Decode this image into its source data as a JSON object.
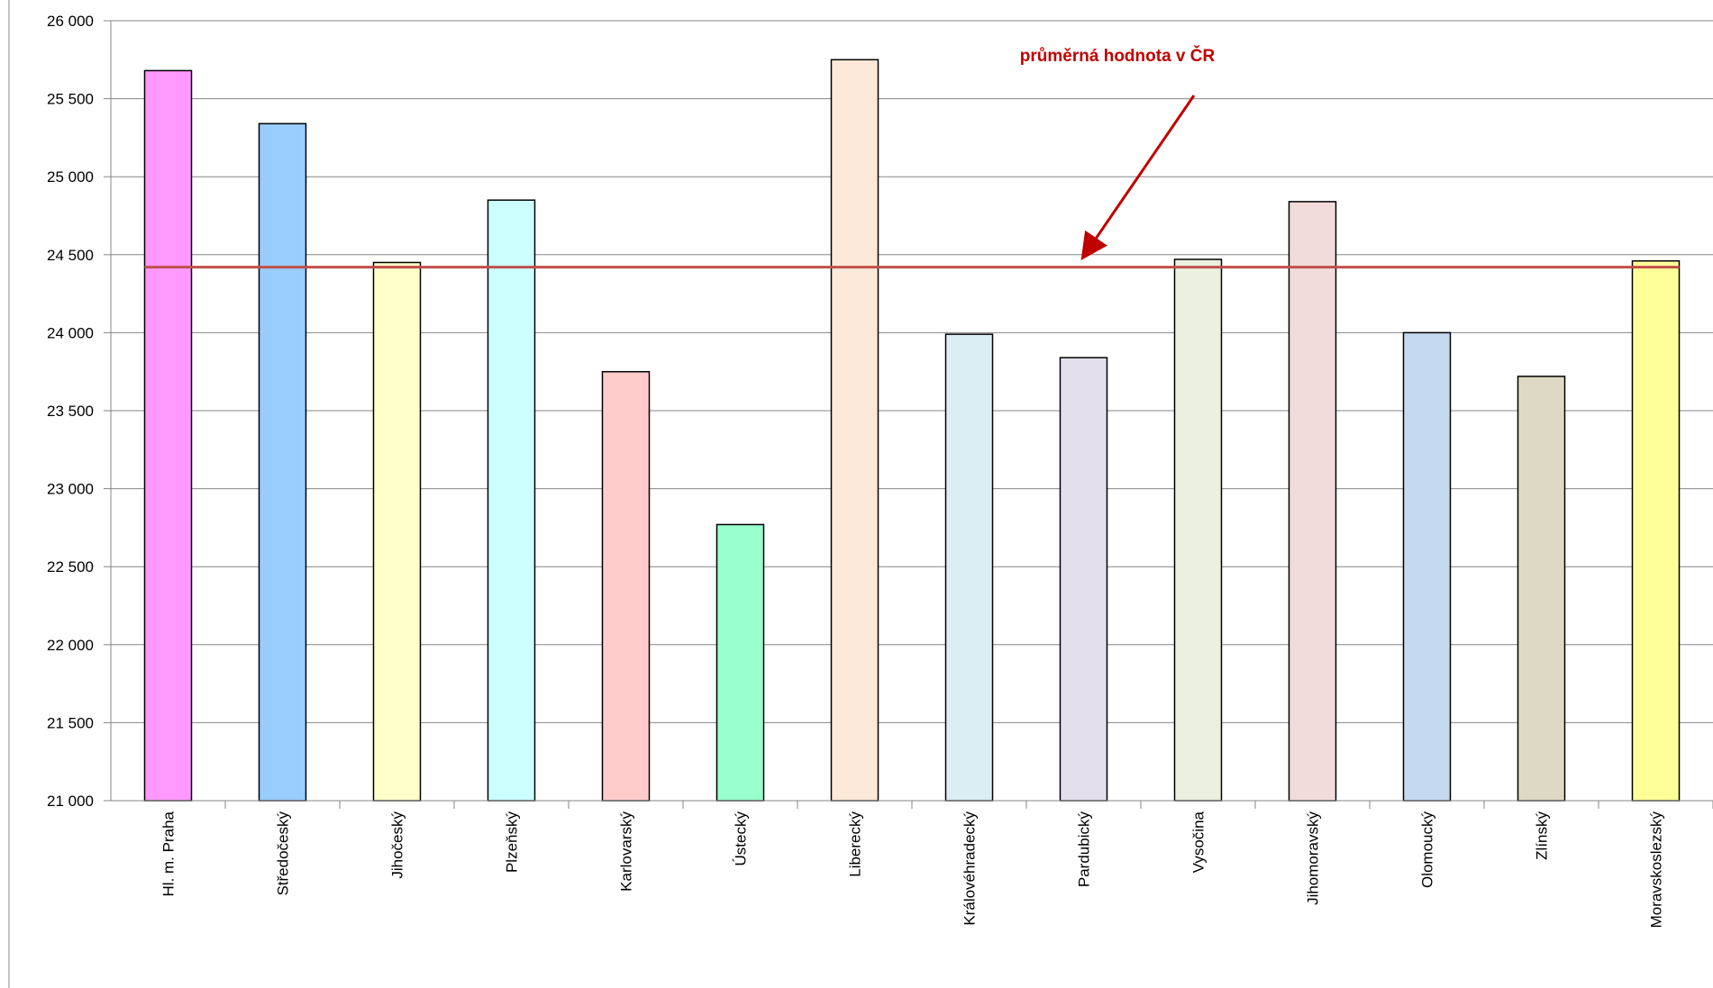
{
  "chart_data": {
    "type": "bar",
    "categories": [
      "Hl. m. Praha",
      "Středočeský",
      "Jihočeský",
      "Plzeňský",
      "Karlovarský",
      "Ústecký",
      "Liberecký",
      "Královéhradecký",
      "Pardubický",
      "Vysočina",
      "Jihomoravský",
      "Olomoucký",
      "Zlínský",
      "Moravskoslezský"
    ],
    "values": [
      25680,
      25340,
      24450,
      24850,
      23750,
      22770,
      25750,
      23990,
      23840,
      24470,
      24840,
      24000,
      23720,
      24460
    ],
    "bar_colors": [
      "#ff99ff",
      "#99ccff",
      "#ffffcc",
      "#ccffff",
      "#ffcccc",
      "#99ffcc",
      "#fde9d9",
      "#daeef3",
      "#e4dfec",
      "#ebf1de",
      "#f2dcdb",
      "#c5d9f1",
      "#ddd9c4",
      "#ffff99"
    ],
    "ylim": [
      21000,
      26000
    ],
    "yticks": [
      21000,
      21500,
      22000,
      22500,
      23000,
      23500,
      24000,
      24500,
      25000,
      25500,
      26000
    ],
    "ytick_labels": [
      "21 000",
      "21 500",
      "22 000",
      "22 500",
      "23 000",
      "23 500",
      "24 000",
      "24 500",
      "25 000",
      "25 500",
      "26 000"
    ],
    "average": {
      "value": 24420,
      "label": "průměrná hodnota v ČR",
      "color": "#c0504d",
      "annotation_color": "#c00000"
    },
    "grid": true,
    "legend": "none",
    "title": "",
    "xlabel": "",
    "ylabel": ""
  }
}
